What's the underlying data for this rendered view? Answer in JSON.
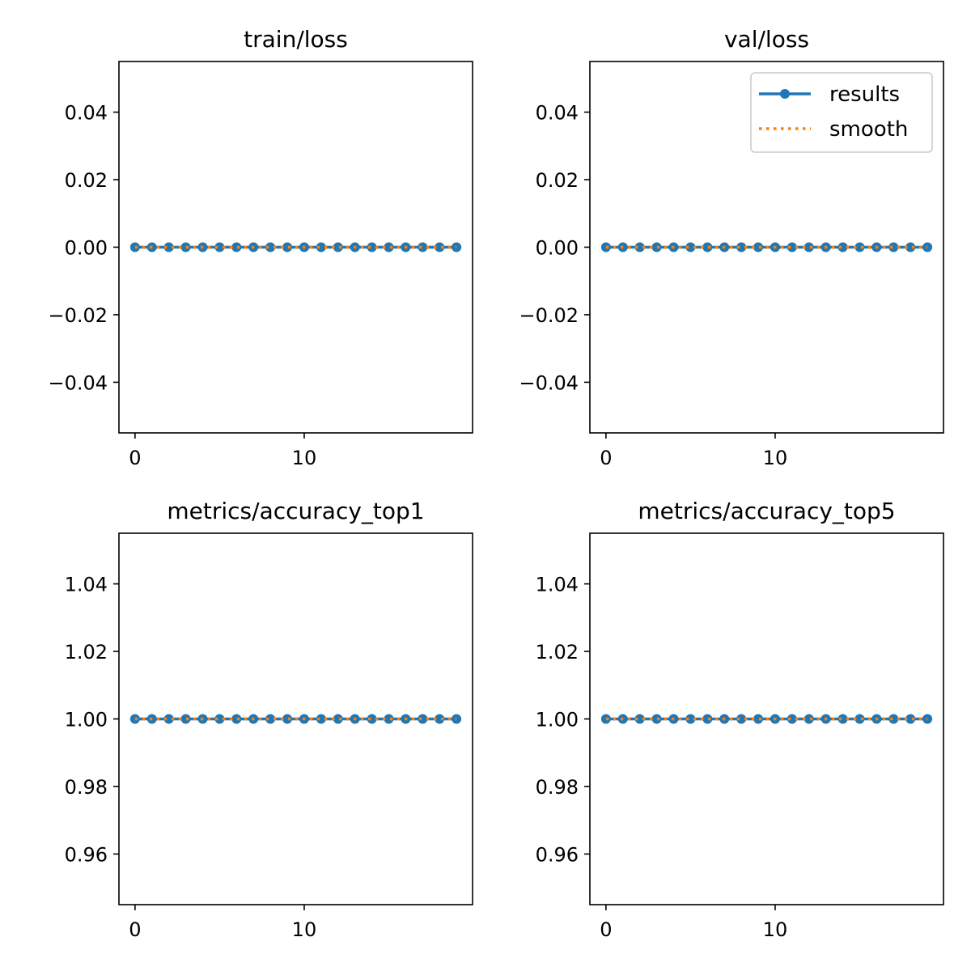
{
  "colors": {
    "results": "#1f77b4",
    "smooth": "#ff7f0e",
    "axes": "#000000",
    "legend_border": "#cccccc"
  },
  "legend": {
    "placement": "upper-right of val/loss panel",
    "entries": [
      {
        "label": "results",
        "style": "solid-line-with-circle-markers",
        "color": "#1f77b4"
      },
      {
        "label": "smooth",
        "style": "dotted-line",
        "color": "#ff7f0e"
      }
    ]
  },
  "chart_data": [
    {
      "type": "line",
      "title": "train/loss",
      "xlabel": "",
      "ylabel": "",
      "xlim": [
        -0.95,
        19.95
      ],
      "ylim": [
        -0.055,
        0.055
      ],
      "xticks": [
        0,
        10
      ],
      "xtick_labels": [
        "0",
        "10"
      ],
      "yticks": [
        -0.04,
        -0.02,
        0.0,
        0.02,
        0.04
      ],
      "ytick_labels": [
        "−0.04",
        "−0.02",
        "0.00",
        "0.02",
        "0.04"
      ],
      "grid": false,
      "legend": false,
      "x": [
        0,
        1,
        2,
        3,
        4,
        5,
        6,
        7,
        8,
        9,
        10,
        11,
        12,
        13,
        14,
        15,
        16,
        17,
        18,
        19
      ],
      "series": [
        {
          "name": "results",
          "values": [
            0,
            0,
            0,
            0,
            0,
            0,
            0,
            0,
            0,
            0,
            0,
            0,
            0,
            0,
            0,
            0,
            0,
            0,
            0,
            0
          ]
        },
        {
          "name": "smooth",
          "values": [
            0,
            0,
            0,
            0,
            0,
            0,
            0,
            0,
            0,
            0,
            0,
            0,
            0,
            0,
            0,
            0,
            0,
            0,
            0,
            0
          ]
        }
      ]
    },
    {
      "type": "line",
      "title": "val/loss",
      "xlabel": "",
      "ylabel": "",
      "xlim": [
        -0.95,
        19.95
      ],
      "ylim": [
        -0.055,
        0.055
      ],
      "xticks": [
        0,
        10
      ],
      "xtick_labels": [
        "0",
        "10"
      ],
      "yticks": [
        -0.04,
        -0.02,
        0.0,
        0.02,
        0.04
      ],
      "ytick_labels": [
        "−0.04",
        "−0.02",
        "0.00",
        "0.02",
        "0.04"
      ],
      "grid": false,
      "legend": true,
      "x": [
        0,
        1,
        2,
        3,
        4,
        5,
        6,
        7,
        8,
        9,
        10,
        11,
        12,
        13,
        14,
        15,
        16,
        17,
        18,
        19
      ],
      "series": [
        {
          "name": "results",
          "values": [
            0,
            0,
            0,
            0,
            0,
            0,
            0,
            0,
            0,
            0,
            0,
            0,
            0,
            0,
            0,
            0,
            0,
            0,
            0,
            0
          ]
        },
        {
          "name": "smooth",
          "values": [
            0,
            0,
            0,
            0,
            0,
            0,
            0,
            0,
            0,
            0,
            0,
            0,
            0,
            0,
            0,
            0,
            0,
            0,
            0,
            0
          ]
        }
      ]
    },
    {
      "type": "line",
      "title": "metrics/accuracy_top1",
      "xlabel": "",
      "ylabel": "",
      "xlim": [
        -0.95,
        19.95
      ],
      "ylim": [
        0.945,
        1.055
      ],
      "xticks": [
        0,
        10
      ],
      "xtick_labels": [
        "0",
        "10"
      ],
      "yticks": [
        0.96,
        0.98,
        1.0,
        1.02,
        1.04
      ],
      "ytick_labels": [
        "0.96",
        "0.98",
        "1.00",
        "1.02",
        "1.04"
      ],
      "grid": false,
      "legend": false,
      "x": [
        0,
        1,
        2,
        3,
        4,
        5,
        6,
        7,
        8,
        9,
        10,
        11,
        12,
        13,
        14,
        15,
        16,
        17,
        18,
        19
      ],
      "series": [
        {
          "name": "results",
          "values": [
            1,
            1,
            1,
            1,
            1,
            1,
            1,
            1,
            1,
            1,
            1,
            1,
            1,
            1,
            1,
            1,
            1,
            1,
            1,
            1
          ]
        },
        {
          "name": "smooth",
          "values": [
            1,
            1,
            1,
            1,
            1,
            1,
            1,
            1,
            1,
            1,
            1,
            1,
            1,
            1,
            1,
            1,
            1,
            1,
            1,
            1
          ]
        }
      ]
    },
    {
      "type": "line",
      "title": "metrics/accuracy_top5",
      "xlabel": "",
      "ylabel": "",
      "xlim": [
        -0.95,
        19.95
      ],
      "ylim": [
        0.945,
        1.055
      ],
      "xticks": [
        0,
        10
      ],
      "xtick_labels": [
        "0",
        "10"
      ],
      "yticks": [
        0.96,
        0.98,
        1.0,
        1.02,
        1.04
      ],
      "ytick_labels": [
        "0.96",
        "0.98",
        "1.00",
        "1.02",
        "1.04"
      ],
      "grid": false,
      "legend": false,
      "x": [
        0,
        1,
        2,
        3,
        4,
        5,
        6,
        7,
        8,
        9,
        10,
        11,
        12,
        13,
        14,
        15,
        16,
        17,
        18,
        19
      ],
      "series": [
        {
          "name": "results",
          "values": [
            1,
            1,
            1,
            1,
            1,
            1,
            1,
            1,
            1,
            1,
            1,
            1,
            1,
            1,
            1,
            1,
            1,
            1,
            1,
            1
          ]
        },
        {
          "name": "smooth",
          "values": [
            1,
            1,
            1,
            1,
            1,
            1,
            1,
            1,
            1,
            1,
            1,
            1,
            1,
            1,
            1,
            1,
            1,
            1,
            1,
            1
          ]
        }
      ]
    }
  ]
}
